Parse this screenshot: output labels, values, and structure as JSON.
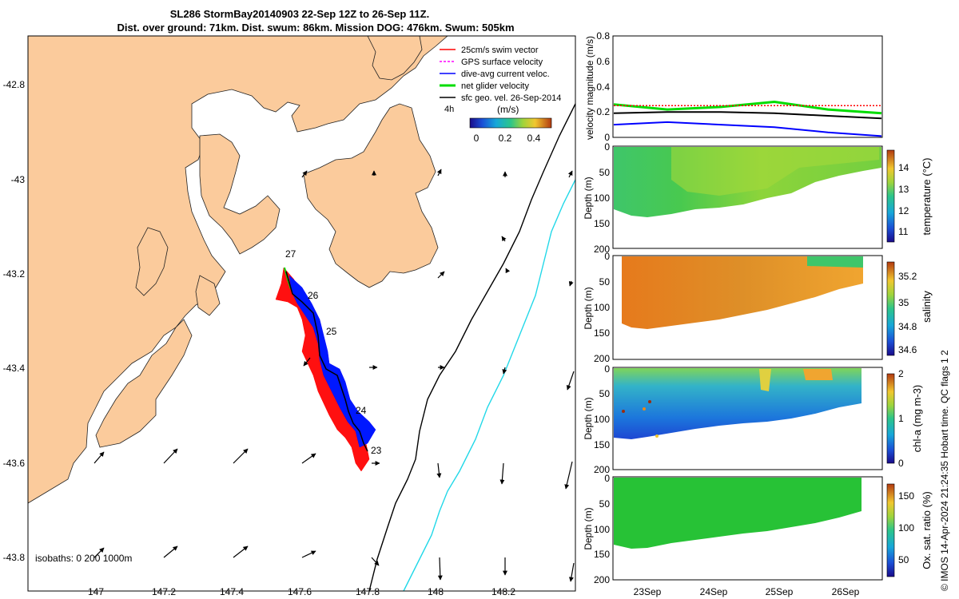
{
  "title": {
    "line1": "SL286 StormBay20140903 22-Sep 12Z to 26-Sep 11Z.",
    "line2": "Dist. over ground: 71km. Dist. swum: 86km. Mission DOG: 476km. Swum: 505km"
  },
  "credit": "© IMOS 14-Apr-2024 21:24:35 Hobart time. QC flags 1  2",
  "colors": {
    "land": "#fbcb9c",
    "swim_vector": "#ff0000",
    "gps_velocity": "#ff00ff",
    "dive_avg": "#0000ff",
    "net_glider": "#00dd00",
    "sfc_geo": "#000000",
    "isobath_200": "#000000",
    "isobath_1000": "#22d8e8"
  },
  "map": {
    "legend": [
      {
        "key": "swim",
        "label": "25cm/s swim vector"
      },
      {
        "key": "gps",
        "label": "GPS surface velocity"
      },
      {
        "key": "dive",
        "label": "dive-avg current veloc."
      },
      {
        "key": "net",
        "label": "net glider velocity"
      },
      {
        "key": "sfc",
        "label": "sfc geo. vel. 26-Sep-2014"
      }
    ],
    "time_label": "4h",
    "colorbar_label": "(m/s)",
    "colorbar_ticks": [
      "0",
      "0.2",
      "0.4"
    ],
    "isobath_label": "isobaths: 0   200  1000m",
    "x_ticks": [
      "147",
      "147.2",
      "147.4",
      "147.6",
      "147.8",
      "148",
      "148.2"
    ],
    "y_ticks": [
      "-42.8",
      "-43",
      "-43.2",
      "-43.4",
      "-43.6",
      "-43.8"
    ],
    "day_labels": [
      "23",
      "24",
      "25",
      "26",
      "27"
    ]
  },
  "chart_data": [
    {
      "type": "line",
      "ylabel": "velocity magnitude (m/s)",
      "ylim": [
        0,
        0.8
      ],
      "y_ticks": [
        "0",
        "0.2",
        "0.4",
        "0.6",
        "0.8"
      ],
      "x": [
        "22-Sep 12Z",
        "23-Sep",
        "24-Sep",
        "25-Sep",
        "26-Sep",
        "26-Sep 11Z"
      ],
      "series": [
        {
          "key": "net",
          "values": [
            0.26,
            0.22,
            0.24,
            0.28,
            0.22,
            0.19
          ]
        },
        {
          "key": "sfc",
          "values": [
            0.19,
            0.2,
            0.2,
            0.19,
            0.17,
            0.15
          ]
        },
        {
          "key": "dive",
          "values": [
            0.1,
            0.12,
            0.1,
            0.08,
            0.04,
            0.01
          ]
        },
        {
          "key": "swim",
          "values": [
            0.25,
            0.25,
            0.25,
            0.25,
            0.25,
            0.25
          ]
        }
      ]
    },
    {
      "type": "heatmap",
      "ylabel": "Depth (m)",
      "colorbar_label": "temperature (°C)",
      "clim": [
        10.5,
        14.8
      ],
      "colorbar_ticks": [
        "11",
        "12",
        "13",
        "14"
      ],
      "ylim": [
        200,
        0
      ],
      "y_ticks": [
        "0",
        "50",
        "100",
        "150",
        "200"
      ]
    },
    {
      "type": "heatmap",
      "ylabel": "Depth (m)",
      "colorbar_label": "salinity",
      "clim": [
        34.55,
        35.35
      ],
      "colorbar_ticks": [
        "34.6",
        "34.8",
        "35",
        "35.2"
      ],
      "ylim": [
        200,
        0
      ],
      "y_ticks": [
        "0",
        "50",
        "100",
        "150",
        "200"
      ]
    },
    {
      "type": "heatmap",
      "ylabel": "Depth (m)",
      "colorbar_label": "chl-a (mg m-3)",
      "clim": [
        0,
        2
      ],
      "colorbar_ticks": [
        "0",
        "1",
        "2"
      ],
      "ylim": [
        200,
        0
      ],
      "y_ticks": [
        "0",
        "50",
        "100",
        "150",
        "200"
      ]
    },
    {
      "type": "heatmap",
      "ylabel": "Depth (m)",
      "colorbar_label": "Ox. sat. ratio (%)",
      "clim": [
        20,
        175
      ],
      "colorbar_ticks": [
        "50",
        "100",
        "150"
      ],
      "ylim": [
        200,
        0
      ],
      "y_ticks": [
        "0",
        "50",
        "100",
        "150",
        "200"
      ],
      "x_ticks": [
        "23Sep",
        "24Sep",
        "25Sep",
        "26Sep"
      ]
    }
  ]
}
